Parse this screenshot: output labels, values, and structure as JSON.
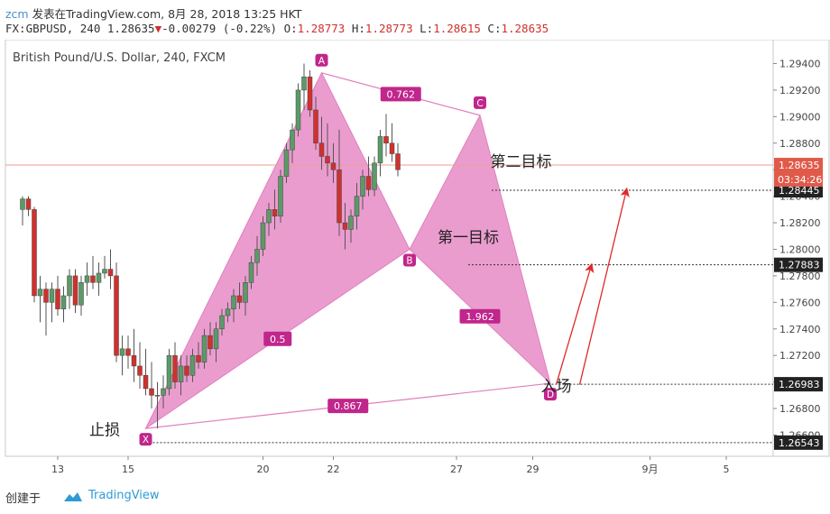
{
  "header": {
    "author": "zcm",
    "published": "发表在TradingView.com, 8月 28, 2018 13:25 HKT",
    "symbol": "FX:GBPUSD, 240",
    "last": "1.28635",
    "change_arrow": "▼",
    "change": "-0.00279 (-0.22%)",
    "o_label": "O:",
    "o_value": "1.28773",
    "h_label": "H:",
    "h_value": "1.28773",
    "l_label": "L:",
    "l_value": "1.28615",
    "c_label": "C:",
    "c_value": "1.28635"
  },
  "footer": {
    "created_with": "创建于",
    "logo_text": "TradingView"
  },
  "colors": {
    "up": "#5b9a68",
    "down": "#d0312d",
    "pattern_fill": "#e680c2",
    "pattern_stroke": "#e07fbd",
    "label_bg": "#c0268c",
    "arrow": "#e0282a",
    "price_tag": "#e05a4a",
    "axis_tag": "#222222"
  },
  "chart_data": {
    "type": "candlestick",
    "title": "British Pound/U.S. Dollar, 240, FXCM",
    "ylim": [
      1.2644,
      1.2958
    ],
    "y_ticks": [
      "1.29400",
      "1.29200",
      "1.29000",
      "1.28800",
      "1.28600",
      "1.28400",
      "1.28200",
      "1.28000",
      "1.27800",
      "1.27600",
      "1.27400",
      "1.27200",
      "1.27000",
      "1.26800",
      "1.26600"
    ],
    "x_ticks": [
      {
        "label": "13",
        "i": 8
      },
      {
        "label": "15",
        "i": 20
      },
      {
        "label": "20",
        "i": 43
      },
      {
        "label": "22",
        "i": 55
      },
      {
        "label": "27",
        "i": 76
      },
      {
        "label": "29",
        "i": 89
      },
      {
        "label": "9月",
        "i": 109
      },
      {
        "label": "5",
        "i": 122
      }
    ],
    "candles": [
      [
        1.283,
        1.284,
        1.2818,
        1.2838
      ],
      [
        1.2838,
        1.284,
        1.2825,
        1.283
      ],
      [
        1.283,
        1.2832,
        1.276,
        1.2765
      ],
      [
        1.2765,
        1.278,
        1.2745,
        1.277
      ],
      [
        1.277,
        1.2775,
        1.2735,
        1.276
      ],
      [
        1.276,
        1.2775,
        1.2745,
        1.277
      ],
      [
        1.277,
        1.278,
        1.275,
        1.2755
      ],
      [
        1.2755,
        1.2772,
        1.2745,
        1.2765
      ],
      [
        1.2765,
        1.2785,
        1.2755,
        1.278
      ],
      [
        1.278,
        1.2785,
        1.2752,
        1.2758
      ],
      [
        1.2758,
        1.278,
        1.275,
        1.2775
      ],
      [
        1.2775,
        1.279,
        1.2765,
        1.278
      ],
      [
        1.278,
        1.2795,
        1.277,
        1.2775
      ],
      [
        1.2775,
        1.279,
        1.2765,
        1.2782
      ],
      [
        1.2782,
        1.2795,
        1.2778,
        1.2785
      ],
      [
        1.2785,
        1.28,
        1.277,
        1.278
      ],
      [
        1.278,
        1.279,
        1.2715,
        1.272
      ],
      [
        1.272,
        1.2735,
        1.2705,
        1.2725
      ],
      [
        1.2725,
        1.2735,
        1.271,
        1.272
      ],
      [
        1.272,
        1.274,
        1.27,
        1.2712
      ],
      [
        1.2712,
        1.273,
        1.2695,
        1.2705
      ],
      [
        1.2705,
        1.2725,
        1.269,
        1.2695
      ],
      [
        1.2695,
        1.2715,
        1.268,
        1.269
      ],
      [
        1.269,
        1.27,
        1.2665,
        1.269
      ],
      [
        1.269,
        1.2705,
        1.268,
        1.2695
      ],
      [
        1.2695,
        1.2725,
        1.269,
        1.272
      ],
      [
        1.272,
        1.273,
        1.2695,
        1.27
      ],
      [
        1.27,
        1.272,
        1.269,
        1.2712
      ],
      [
        1.2712,
        1.272,
        1.27,
        1.2705
      ],
      [
        1.2705,
        1.2725,
        1.27,
        1.272
      ],
      [
        1.272,
        1.273,
        1.271,
        1.2715
      ],
      [
        1.2715,
        1.274,
        1.271,
        1.2735
      ],
      [
        1.2735,
        1.2745,
        1.272,
        1.2725
      ],
      [
        1.2725,
        1.2745,
        1.2715,
        1.274
      ],
      [
        1.274,
        1.2755,
        1.2735,
        1.275
      ],
      [
        1.275,
        1.276,
        1.2745,
        1.2755
      ],
      [
        1.2755,
        1.277,
        1.2745,
        1.2765
      ],
      [
        1.2765,
        1.2775,
        1.2755,
        1.276
      ],
      [
        1.276,
        1.278,
        1.275,
        1.2775
      ],
      [
        1.2775,
        1.2795,
        1.277,
        1.279
      ],
      [
        1.279,
        1.281,
        1.278,
        1.28
      ],
      [
        1.28,
        1.2825,
        1.2795,
        1.282
      ],
      [
        1.282,
        1.2835,
        1.281,
        1.283
      ],
      [
        1.283,
        1.2845,
        1.2815,
        1.2825
      ],
      [
        1.2825,
        1.286,
        1.282,
        1.2855
      ],
      [
        1.2855,
        1.288,
        1.285,
        1.2875
      ],
      [
        1.2875,
        1.2895,
        1.2865,
        1.289
      ],
      [
        1.289,
        1.2925,
        1.2885,
        1.292
      ],
      [
        1.292,
        1.294,
        1.2905,
        1.293
      ],
      [
        1.293,
        1.2935,
        1.29,
        1.2905
      ],
      [
        1.2905,
        1.2915,
        1.2875,
        1.288
      ],
      [
        1.288,
        1.29,
        1.286,
        1.287
      ],
      [
        1.287,
        1.2895,
        1.2855,
        1.2865
      ],
      [
        1.2865,
        1.288,
        1.285,
        1.286
      ],
      [
        1.286,
        1.289,
        1.281,
        1.282
      ],
      [
        1.282,
        1.2835,
        1.28,
        1.2815
      ],
      [
        1.2815,
        1.283,
        1.2805,
        1.2825
      ],
      [
        1.2825,
        1.285,
        1.2815,
        1.284
      ],
      [
        1.284,
        1.286,
        1.283,
        1.2855
      ],
      [
        1.2855,
        1.287,
        1.284,
        1.2845
      ],
      [
        1.2845,
        1.287,
        1.284,
        1.2865
      ],
      [
        1.2865,
        1.289,
        1.2855,
        1.2885
      ],
      [
        1.2885,
        1.2902,
        1.287,
        1.288
      ],
      [
        1.288,
        1.2895,
        1.2866,
        1.2872
      ],
      [
        1.2872,
        1.288,
        1.2855,
        1.286
      ]
    ],
    "candle_x_start": 2,
    "pattern": {
      "points": [
        {
          "label": "X",
          "i": 23,
          "price": 1.2665
        },
        {
          "label": "A",
          "i": 53,
          "price": 1.2933
        },
        {
          "label": "B",
          "i": 68,
          "price": 1.28
        },
        {
          "label": "C",
          "i": 80,
          "price": 1.2901
        },
        {
          "label": "D",
          "i": 92,
          "price": 1.2699
        }
      ],
      "ratios": [
        {
          "label": "0.5",
          "from": 0,
          "to": 2
        },
        {
          "label": "0.762",
          "from": 1,
          "to": 3
        },
        {
          "label": "1.962",
          "from": 2,
          "to": 4
        },
        {
          "label": "0.867",
          "from": 0,
          "to": 4
        }
      ]
    },
    "levels": [
      {
        "price": 1.28445,
        "label": "1.28445",
        "i_start": 82
      },
      {
        "price": 1.27883,
        "label": "1.27883",
        "i_start": 78
      },
      {
        "price": 1.26983,
        "label": "1.26983",
        "i_start": 91
      },
      {
        "price": 1.26543,
        "label": "1.26543",
        "i_start": 23
      }
    ],
    "current_price": {
      "value": 1.28635,
      "label": "1.28635",
      "countdown": "03:34:26"
    },
    "annotations": [
      {
        "text": "第二目标",
        "i": 87,
        "price": 1.2862
      },
      {
        "text": "第一目标",
        "i": 78,
        "price": 1.2805
      },
      {
        "text": "入场",
        "i": 93,
        "price": 1.2693
      },
      {
        "text": "止损",
        "i": 16,
        "price": 1.266
      }
    ],
    "arrows": [
      {
        "from_i": 93,
        "from_price": 1.2698,
        "to_i": 99,
        "to_price": 1.2788
      },
      {
        "from_i": 97,
        "from_price": 1.2698,
        "to_i": 105,
        "to_price": 1.2845
      }
    ]
  }
}
